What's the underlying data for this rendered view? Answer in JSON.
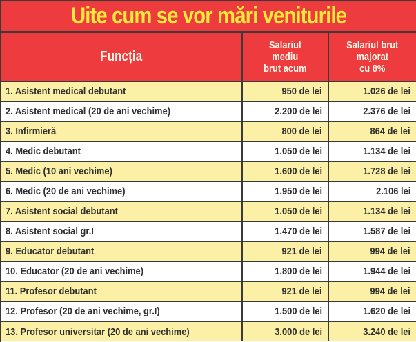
{
  "title": "Uite cum se vor mări veniturile",
  "colors": {
    "header_red": "#ee3b3d",
    "title_yellow": "#fde83c",
    "row_yellow": "#fbf0a6",
    "row_white": "#ffffff",
    "border": "#3a3a3a",
    "text": "#2f2f2f"
  },
  "table": {
    "headers": [
      "Funcția",
      "Salariul mediu brut acum",
      "Salariul brut majorat cu 8%"
    ],
    "header_lines": {
      "col2": [
        "Salariul",
        "mediu",
        "brut acum"
      ],
      "col3": [
        "Salariul brut",
        "majorat",
        "cu 8%"
      ]
    },
    "rows": [
      {
        "functia": "1. Asistent medical debutant",
        "acum": "950 de lei",
        "majorat": "1.026 de lei"
      },
      {
        "functia": "2. Asistent medical (20 de ani vechime)",
        "acum": "2.200 de lei",
        "majorat": "2.376 de lei"
      },
      {
        "functia": "3. Infirmieră",
        "acum": "800 de lei",
        "majorat": "864 de lei"
      },
      {
        "functia": "4. Medic debutant",
        "acum": "1.050 de lei",
        "majorat": "1.134 de lei"
      },
      {
        "functia": "5. Medic (10 ani vechime)",
        "acum": "1.600 de lei",
        "majorat": "1.728 de lei"
      },
      {
        "functia": "6. Medic (20 de ani vechime)",
        "acum": "1.950 de lei",
        "majorat": "2.106 lei"
      },
      {
        "functia": "7. Asistent social debutant",
        "acum": "1.050 de lei",
        "majorat": "1.134 de lei"
      },
      {
        "functia": "8. Asistent social gr.I",
        "acum": "1.470 de lei",
        "majorat": "1.587 de lei"
      },
      {
        "functia": "9. Educator debutant",
        "acum": "921 de lei",
        "majorat": "994 de lei"
      },
      {
        "functia": "10. Educator (20 de ani vechime)",
        "acum": "1.800 de lei",
        "majorat": "1.944 de lei"
      },
      {
        "functia": "11. Profesor debutant",
        "acum": "921 de lei",
        "majorat": "994 de lei"
      },
      {
        "functia": "12. Profesor (20 de ani vechime, gr.I)",
        "acum": "1.500 de lei",
        "majorat": "1.620 de lei"
      },
      {
        "functia": "13. Profesor universitar (20 de ani vechime)",
        "acum": "3.000 de lei",
        "majorat": "3.240 de lei"
      }
    ]
  }
}
